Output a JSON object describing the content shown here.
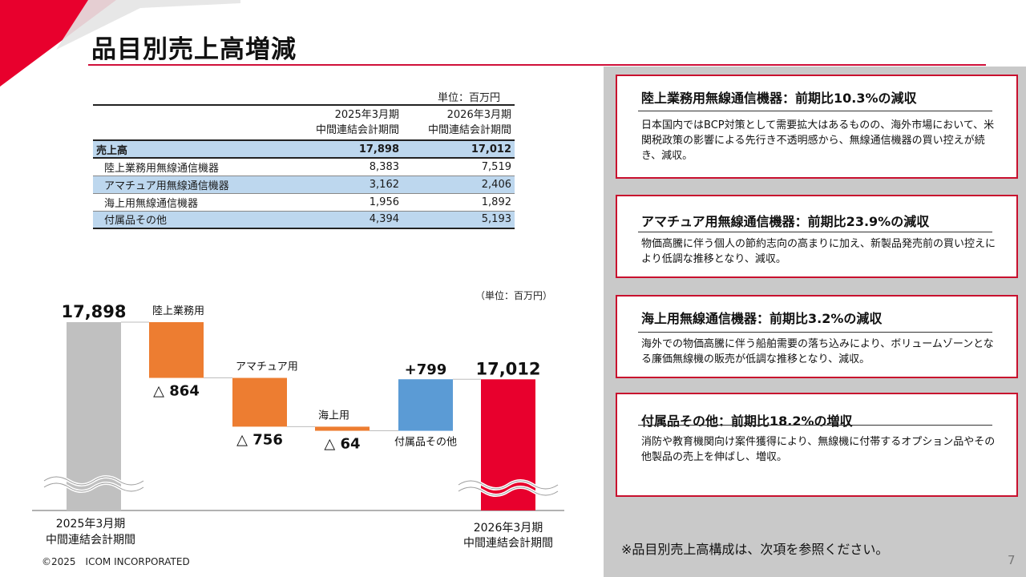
{
  "slide": {
    "title": "品目別売上高増減",
    "copyright": "©2025　ICOM INCORPORATED",
    "page_number": "7",
    "reference_note": "※品目別売上高構成は、次項を参照ください。"
  },
  "table": {
    "unit": "単位：百万円",
    "headers": [
      {
        "line1": "2025年3月期",
        "line2": "中間連結会計期間"
      },
      {
        "line1": "2026年3月期",
        "line2": "中間連結会計期間"
      }
    ],
    "rows": [
      {
        "label": "売上高",
        "prev": "17,898",
        "curr": "17,012"
      },
      {
        "label": "陸上業務用無線通信機器",
        "prev": "8,383",
        "curr": "7,519"
      },
      {
        "label": "アマチュア用無線通信機器",
        "prev": "3,162",
        "curr": "2,406"
      },
      {
        "label": "海上用無線通信機器",
        "prev": "1,956",
        "curr": "1,892"
      },
      {
        "label": "付属品その他",
        "prev": "4,394",
        "curr": "5,193"
      }
    ]
  },
  "chart_data": {
    "type": "waterfall",
    "unit": "（単位：百万円）",
    "start": {
      "label_line1": "2025年3月期",
      "label_line2": "中間連結会計期間",
      "value": 17898,
      "display": "17,898"
    },
    "steps": [
      {
        "name": "陸上業務用",
        "delta": -864,
        "display": "△ 864"
      },
      {
        "name": "アマチュア用",
        "delta": -756,
        "display": "△ 756"
      },
      {
        "name": "海上用",
        "delta": -64,
        "display": "△ 64"
      },
      {
        "name": "付属品その他",
        "delta": 799,
        "display": "+799"
      }
    ],
    "end": {
      "label_line1": "2026年3月期",
      "label_line2": "中間連結会計期間",
      "value": 17012,
      "display": "17,012"
    },
    "colors": {
      "start": "#c0c0c0",
      "decrease": "#ed7d31",
      "increase": "#5b9bd5",
      "end": "#e8002d"
    }
  },
  "cards": [
    {
      "title": "陸上業務用無線通信機器：前期比10.3%の減収",
      "body": "日本国内ではBCP対策として需要拡大はあるものの、海外市場において、米関税政策の影響による先行き不透明感から、無線通信機器の買い控えが続き、減収。"
    },
    {
      "title": "アマチュア用無線通信機器：前期比23.9%の減収",
      "body": "物価高騰に伴う個人の節約志向の高まりに加え、新製品発売前の買い控えにより低調な推移となり、減収。"
    },
    {
      "title": "海上用無線通信機器：前期比3.2%の減収",
      "body": "海外での物価高騰に伴う船舶需要の落ち込みにより、ボリュームゾーンとなる廉価無線機の販売が低調な推移となり、減収。"
    },
    {
      "title": "付属品その他：前期比18.2%の増収",
      "body": "消防や教育機関向け案件獲得により、無線機に付帯するオプション品やその他製品の売上を伸ばし、増収。"
    }
  ],
  "colors": {
    "brand_red": "#c8102e",
    "panel_gray": "#c9c9c9",
    "table_blue": "#bdd7ee"
  }
}
